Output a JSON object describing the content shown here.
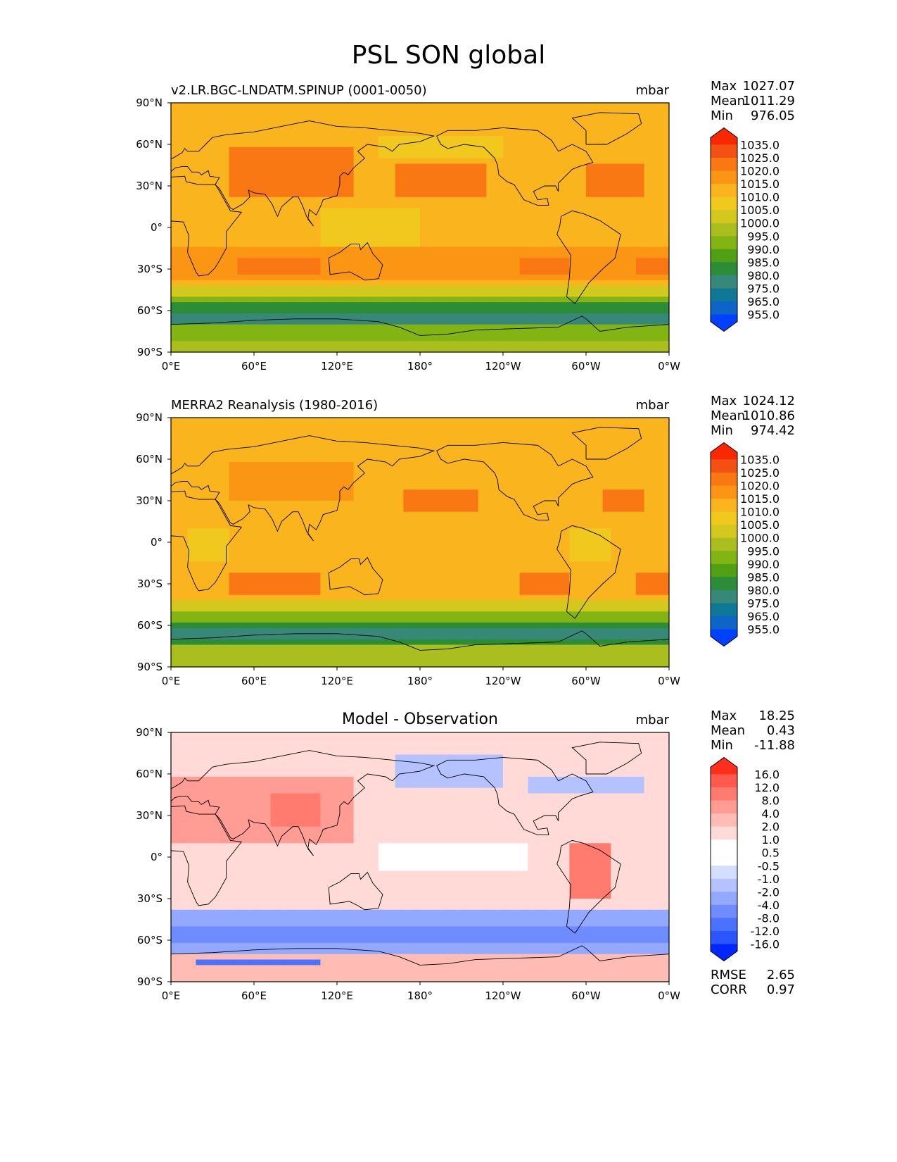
{
  "title": "PSL SON global",
  "colors": {
    "abs": [
      "#0040ff",
      "#0f64c8",
      "#0f7896",
      "#38887a",
      "#2c8c37",
      "#50a014",
      "#82b414",
      "#aabe1e",
      "#d2c81e",
      "#f0c81e",
      "#fab41e",
      "#fa9614",
      "#fa7814",
      "#f55014",
      "#fa2800"
    ],
    "diff": [
      "#0027ff",
      "#2a55ff",
      "#4a72ff",
      "#6f8cff",
      "#93a8ff",
      "#b4c3ff",
      "#d4deff",
      "#ffffff",
      "#ffffff",
      "#ffdad6",
      "#ffbcb5",
      "#ff9c94",
      "#ff7b70",
      "#ff5a4c",
      "#ff2f1c"
    ]
  },
  "panels": [
    {
      "id": "test",
      "kind": "abs",
      "label_left": "v2.LR.BGC-LNDATM.SPINUP (0001-0050)",
      "label_center": "",
      "units": "mbar",
      "stats_names": [
        "Max",
        "Mean",
        "Min"
      ],
      "stats_values": [
        "1027.07",
        "1011.29",
        "976.05"
      ],
      "colorbar_labels": [
        "1035.0",
        "1025.0",
        "1020.0",
        "1015.0",
        "1010.0",
        "1005.0",
        "1000.0",
        "995.0",
        "990.0",
        "985.0",
        "980.0",
        "975.0",
        "965.0",
        "955.0"
      ],
      "extra_names": [],
      "extra_values": []
    },
    {
      "id": "ref",
      "kind": "abs",
      "label_left": "MERRA2 Reanalysis (1980-2016)",
      "label_center": "",
      "units": "mbar",
      "stats_names": [
        "Max",
        "Mean",
        "Min"
      ],
      "stats_values": [
        "1024.12",
        "1010.86",
        "974.42"
      ],
      "colorbar_labels": [
        "1035.0",
        "1025.0",
        "1020.0",
        "1015.0",
        "1010.0",
        "1005.0",
        "1000.0",
        "995.0",
        "990.0",
        "985.0",
        "980.0",
        "975.0",
        "965.0",
        "955.0"
      ],
      "extra_names": [],
      "extra_values": []
    },
    {
      "id": "diff",
      "kind": "diff",
      "label_left": "",
      "label_center": "Model - Observation",
      "units": "mbar",
      "stats_names": [
        "Max",
        "Mean",
        "Min"
      ],
      "stats_values": [
        "18.25",
        "0.43",
        "-11.88"
      ],
      "colorbar_labels": [
        "16.0",
        "12.0",
        "8.0",
        "4.0",
        "2.0",
        "1.0",
        "0.5",
        "-0.5",
        "-1.0",
        "-2.0",
        "-4.0",
        "-8.0",
        "-12.0",
        "-16.0"
      ],
      "extra_names": [
        "RMSE",
        "CORR"
      ],
      "extra_values": [
        "2.65",
        "0.97"
      ]
    }
  ],
  "lat_labels": [
    "90°N",
    "60°N",
    "30°N",
    "0°",
    "30°S",
    "60°S",
    "90°S"
  ],
  "lon_labels": [
    "0°E",
    "60°E",
    "120°E",
    "180°",
    "120°W",
    "60°W",
    "0°W"
  ]
}
